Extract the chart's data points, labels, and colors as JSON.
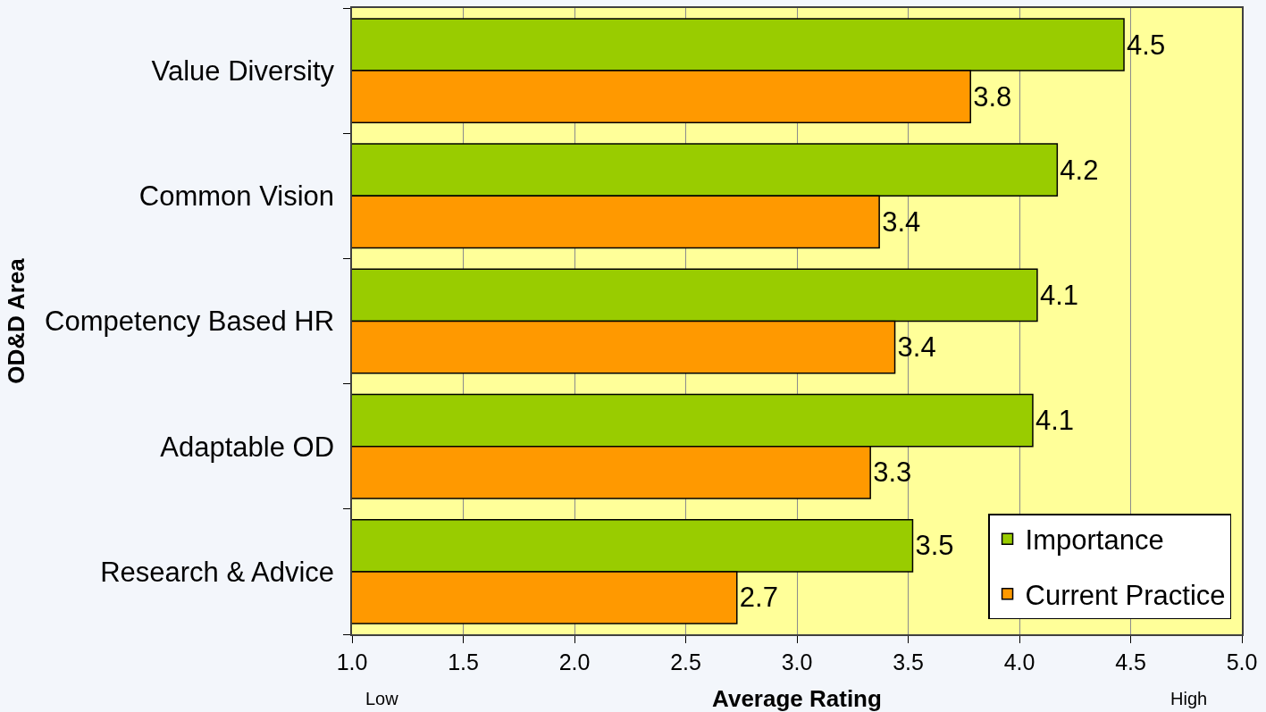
{
  "chart_data": {
    "type": "bar",
    "orientation": "horizontal",
    "xlabel": "Average Rating",
    "ylabel": "OD&D Area",
    "annotations": [
      "Low",
      "High"
    ],
    "categories": [
      "Value Diversity",
      "Common Vision",
      "Competency Based HR",
      "Adaptable OD",
      "Research & Advice"
    ],
    "series": [
      {
        "name": "Importance",
        "color": "#99cc00",
        "values": [
          4.47,
          4.17,
          4.08,
          4.06,
          3.52
        ],
        "value_labels": [
          "4.5",
          "4.2",
          "4.1",
          "4.1",
          "3.5"
        ]
      },
      {
        "name": "Current Practice",
        "color": "#ff9900",
        "values": [
          3.78,
          3.37,
          3.44,
          3.33,
          2.73
        ],
        "value_labels": [
          "3.8",
          "3.4",
          "3.4",
          "3.3",
          "2.7"
        ]
      }
    ],
    "xlim": [
      1.0,
      5.0
    ],
    "xticks": [
      {
        "value": 1.0,
        "label": "1.0"
      },
      1.5,
      {
        "value": 2.0,
        "label": "2.0"
      },
      2.5,
      {
        "value": 3.0,
        "label": "3.0"
      },
      3.5,
      {
        "value": 4.0,
        "label": "4.0"
      },
      4.5,
      {
        "value": 5.0,
        "label": "5.0"
      }
    ],
    "grid": "x",
    "legend": "bottom right"
  }
}
